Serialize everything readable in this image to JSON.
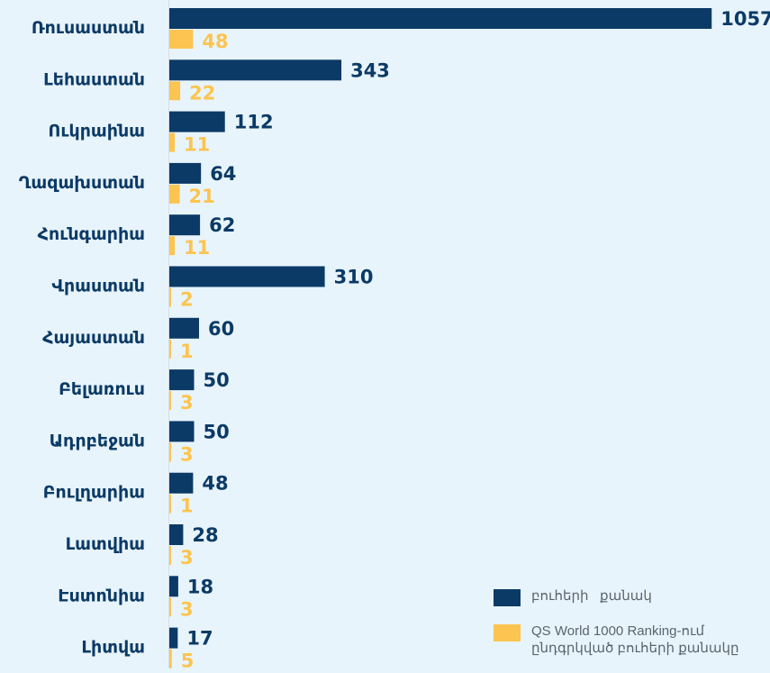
{
  "chart_data": {
    "type": "bar",
    "orientation": "horizontal",
    "categories": [
      "Ռուսաստան",
      "Լեհաստան",
      "Ուկրաինա",
      "Ղազախստան",
      "Հունգարիա",
      "Վրաստան",
      "Հայաստան",
      "Բելառուս",
      "Ադրբեջան",
      "Բուլղարիա",
      "Լատվիա",
      "Էստոնիա",
      "Լիտվա"
    ],
    "series": [
      {
        "name": "բուհերի   քանակ",
        "color": "#0b3a66",
        "values": [
          1057,
          343,
          112,
          64,
          62,
          310,
          60,
          50,
          50,
          48,
          28,
          18,
          17
        ]
      },
      {
        "name": "QS World 1000 Ranking-ում ընդգրկված բուհերի քանակը",
        "color": "#fcc450",
        "values": [
          48,
          22,
          11,
          21,
          11,
          2,
          1,
          3,
          3,
          1,
          3,
          3,
          5
        ]
      }
    ],
    "legend_position": "bottom-right",
    "grid": false
  },
  "legend": {
    "items": [
      {
        "label": "բուհերի   քանակ",
        "color": "#0b3a66"
      },
      {
        "label": "QS World 1000 Ranking-ում ընդգրկված բուհերի քանակը",
        "color": "#fcc450"
      }
    ]
  }
}
